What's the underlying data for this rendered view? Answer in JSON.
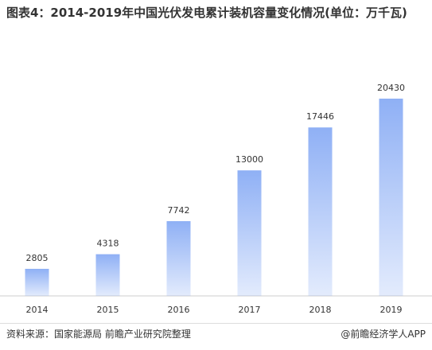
{
  "chart_data": {
    "type": "bar",
    "title": "图表4：2014-2019年中国光伏发电累计装机容量变化情况(单位：万千瓦)",
    "categories": [
      "2014",
      "2015",
      "2016",
      "2017",
      "2018",
      "2019"
    ],
    "values": [
      2805,
      4318,
      7742,
      13000,
      17446,
      20430
    ],
    "color": "#8fb0f5",
    "source": "资料来源：国家能源局 前瞻产业研究院整理",
    "credit": "@前瞻经济学人APP"
  }
}
